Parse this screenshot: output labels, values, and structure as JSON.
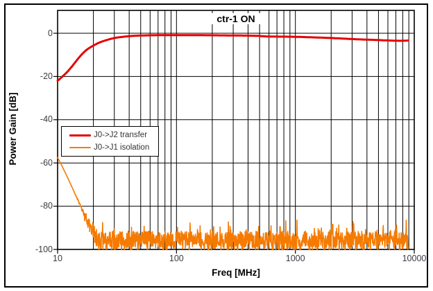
{
  "figure": {
    "title": "ctr-1 ON",
    "x_label": "Freq [MHz]",
    "y_label": "Power Gain [dB]"
  },
  "axes": {
    "x_tick_labels": [
      "10",
      "100",
      "1000",
      "10000"
    ],
    "x_tick_values": [
      10,
      100,
      1000,
      10000
    ],
    "y_tick_labels": [
      "0",
      "-20",
      "-40",
      "-60",
      "-80",
      "-100"
    ],
    "y_tick_values": [
      0,
      -20,
      -40,
      -60,
      -80,
      -100
    ]
  },
  "legend": {
    "items": [
      {
        "label": "J0->J2 transfer",
        "color": "#E60000",
        "line_thickness": 3
      },
      {
        "label": "J0->J1 isolation",
        "color": "#F57A00",
        "line_thickness": 2
      }
    ]
  },
  "colors": {
    "transfer": "#E60000",
    "isolation": "#F57A00",
    "gridline": "#000000",
    "frame": "#000000",
    "tick_text": "#3a3a44",
    "background": "#ffffff"
  },
  "chart_data": {
    "type": "line",
    "title": "ctr-1 ON",
    "xlabel": "Freq [MHz]",
    "ylabel": "Power Gain [dB]",
    "x_scale": "log",
    "xlim": [
      10,
      10000
    ],
    "ylim": [
      -100,
      10
    ],
    "grid": "black minor+major vertical log gridlines, horizontal every 20 dB",
    "legend_position": "middle-left",
    "series": [
      {
        "name": "J0->J2 transfer",
        "color": "#E60000",
        "width": 3,
        "points": [
          [
            10,
            -22
          ],
          [
            10.5,
            -21
          ],
          [
            11,
            -20
          ],
          [
            11.5,
            -19
          ],
          [
            12,
            -18
          ],
          [
            12.5,
            -16.9
          ],
          [
            13,
            -15.8
          ],
          [
            13.5,
            -14.7
          ],
          [
            14,
            -13.6
          ],
          [
            14.5,
            -12.5
          ],
          [
            15,
            -11.5
          ],
          [
            16,
            -9.7
          ],
          [
            17,
            -8.3
          ],
          [
            18,
            -7.2
          ],
          [
            19,
            -6.4
          ],
          [
            20,
            -5.7
          ],
          [
            22,
            -4.5
          ],
          [
            24,
            -3.7
          ],
          [
            26,
            -3.1
          ],
          [
            28,
            -2.6
          ],
          [
            30,
            -2.2
          ],
          [
            33,
            -1.85
          ],
          [
            36,
            -1.6
          ],
          [
            40,
            -1.35
          ],
          [
            45,
            -1.15
          ],
          [
            50,
            -1.05
          ],
          [
            60,
            -0.95
          ],
          [
            70,
            -0.9
          ],
          [
            80,
            -0.87
          ],
          [
            100,
            -0.85
          ],
          [
            130,
            -0.85
          ],
          [
            160,
            -0.9
          ],
          [
            200,
            -0.95
          ],
          [
            250,
            -1.0
          ],
          [
            320,
            -1.05
          ],
          [
            400,
            -1.1
          ],
          [
            480,
            -1.2
          ],
          [
            560,
            -1.45
          ],
          [
            700,
            -1.55
          ],
          [
            900,
            -1.6
          ],
          [
            1100,
            -1.7
          ],
          [
            1400,
            -1.9
          ],
          [
            1800,
            -2.1
          ],
          [
            2300,
            -2.35
          ],
          [
            2800,
            -2.6
          ],
          [
            3500,
            -2.85
          ],
          [
            4500,
            -3.05
          ],
          [
            5500,
            -3.25
          ],
          [
            6500,
            -3.4
          ],
          [
            7500,
            -3.5
          ],
          [
            8300,
            -3.45
          ],
          [
            8900,
            -3.35
          ]
        ]
      },
      {
        "name": "J0->J1 isolation",
        "color": "#F57A00",
        "width": 1.6,
        "points": [
          [
            10,
            -57.5
          ],
          [
            10.4,
            -59.2
          ],
          [
            10.8,
            -61
          ],
          [
            11.2,
            -62.8
          ],
          [
            11.6,
            -64.5
          ],
          [
            12,
            -66.2
          ],
          [
            12.4,
            -67.9
          ],
          [
            12.8,
            -69.5
          ],
          [
            13.2,
            -71.1
          ],
          [
            13.6,
            -72.7
          ],
          [
            14,
            -74.2
          ],
          [
            14.4,
            -75.7
          ],
          [
            14.8,
            -77.2
          ],
          [
            15.2,
            -78.6
          ],
          [
            15.6,
            -80
          ],
          [
            16,
            -81.4
          ],
          [
            16.4,
            -82.8
          ],
          [
            16.8,
            -84.2
          ]
        ],
        "desc_jitter": {
          "from_f": 13.5,
          "amp": 1.2
        },
        "noise": {
          "f_start": 16.8,
          "f_end": 8900,
          "mean_start": -84.2,
          "mean_floor": -96,
          "floor_from_f": 22,
          "amp_start": 2.5,
          "amp_floor": 4.5,
          "spike_prob": 0.07,
          "spike_max": 6.5,
          "clip_min": -100.2,
          "clip_max": -83.5,
          "points": 1100,
          "seed": 987654321
        }
      }
    ]
  }
}
